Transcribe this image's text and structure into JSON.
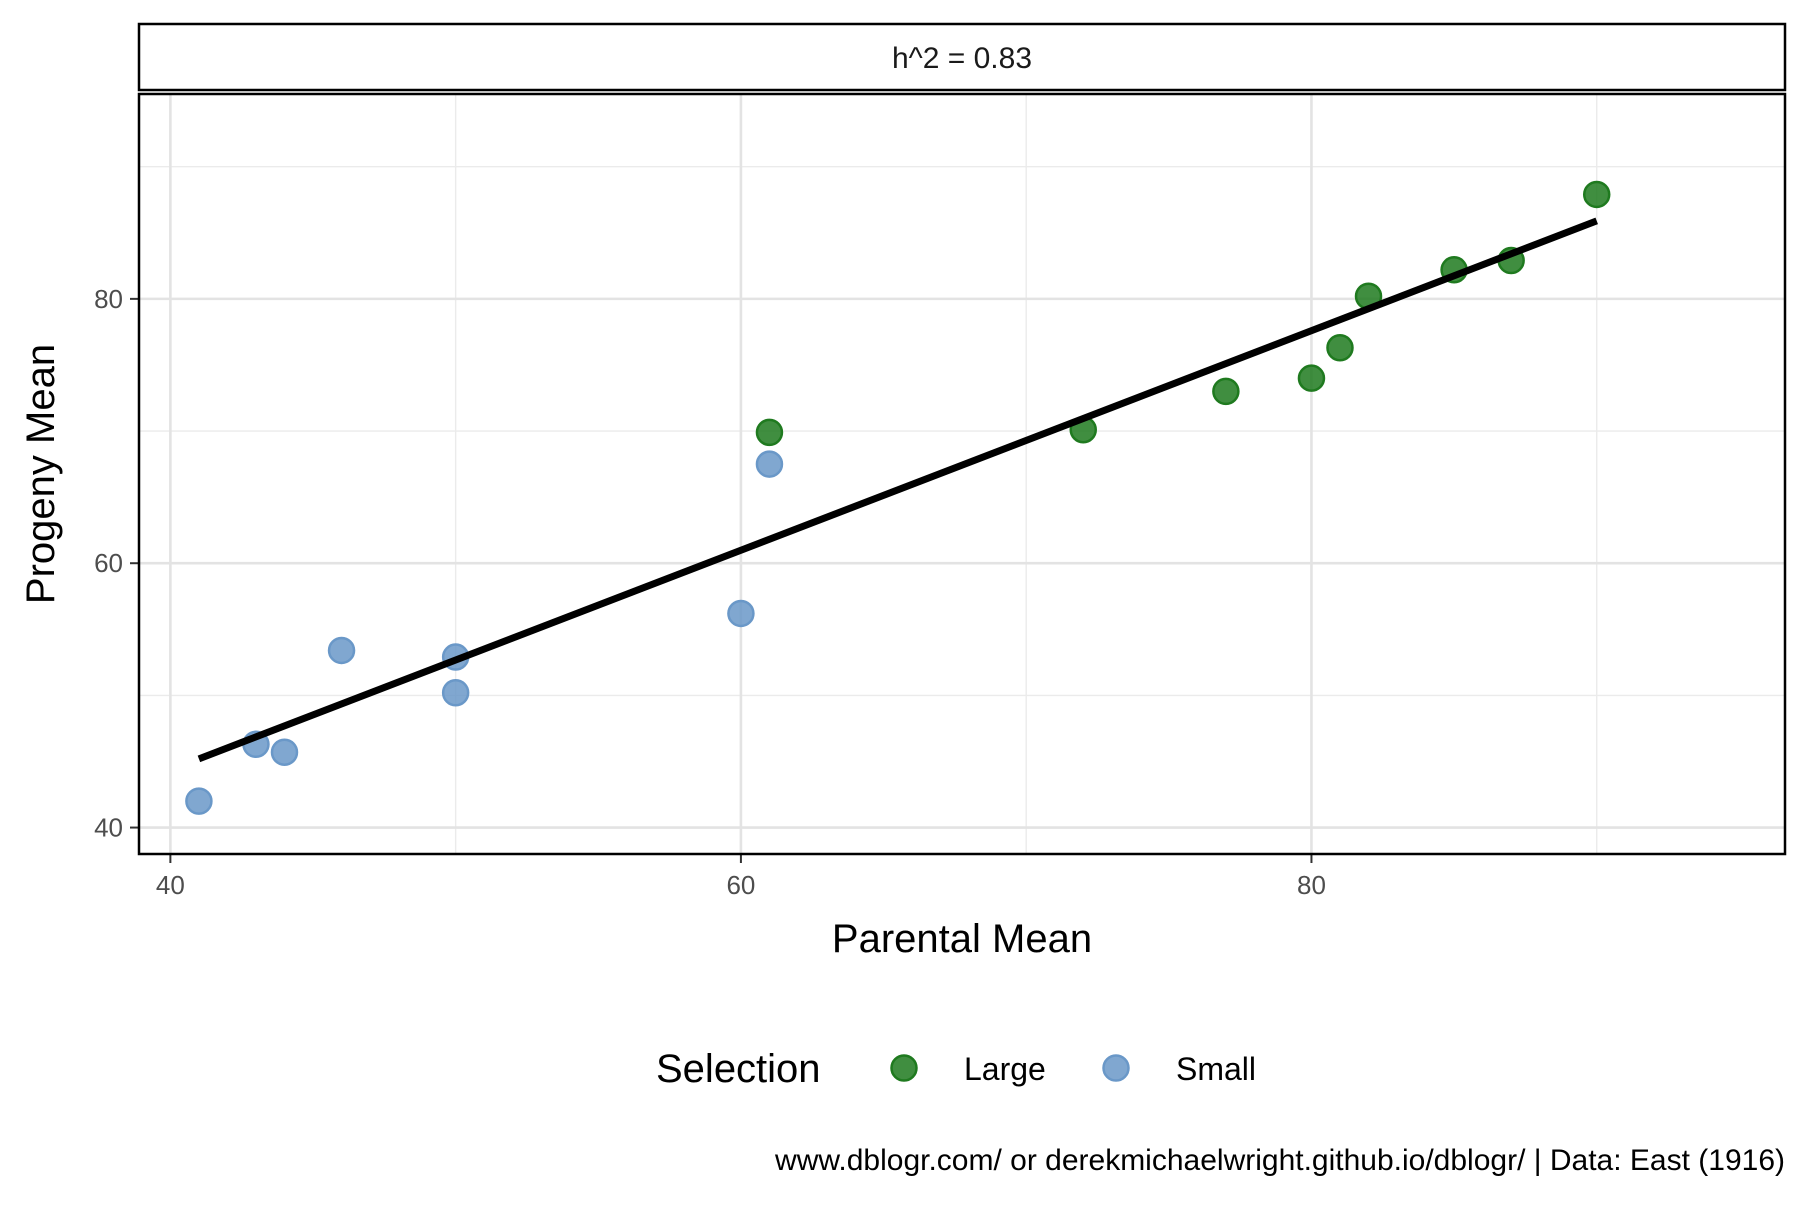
{
  "chart_data": {
    "type": "scatter",
    "facet_label": "h^2 = 0.83",
    "xlabel": "Parental Mean",
    "ylabel": "Progeny Mean",
    "xlim": [
      38.9,
      96.6
    ],
    "ylim": [
      38,
      95.5
    ],
    "x_ticks": [
      40,
      60,
      80
    ],
    "y_ticks": [
      40,
      60,
      80
    ],
    "grid": true,
    "legend": {
      "title": "Selection",
      "position": "bottom"
    },
    "series": [
      {
        "name": "Large",
        "color": "#1f7a1f",
        "points": [
          {
            "x": 61,
            "y": 69.9
          },
          {
            "x": 72,
            "y": 70.1
          },
          {
            "x": 77,
            "y": 73.0
          },
          {
            "x": 80,
            "y": 74.0
          },
          {
            "x": 81,
            "y": 76.3
          },
          {
            "x": 82,
            "y": 80.2
          },
          {
            "x": 85,
            "y": 82.2
          },
          {
            "x": 87,
            "y": 82.9
          },
          {
            "x": 90,
            "y": 87.9
          }
        ]
      },
      {
        "name": "Small",
        "color": "#6a98c8",
        "points": [
          {
            "x": 41,
            "y": 42.0
          },
          {
            "x": 43,
            "y": 46.3
          },
          {
            "x": 44,
            "y": 45.7
          },
          {
            "x": 46,
            "y": 53.4
          },
          {
            "x": 50,
            "y": 52.9
          },
          {
            "x": 50,
            "y": 50.2
          },
          {
            "x": 60,
            "y": 56.2
          },
          {
            "x": 61,
            "y": 67.5
          }
        ]
      }
    ],
    "fit_line": {
      "color": "#000000",
      "x": [
        41,
        90
      ],
      "y": [
        45.2,
        85.9
      ]
    },
    "caption": "www.dblogr.com/ or derekmichaelwright.github.io/dblogr/ | Data: East (1916)"
  }
}
